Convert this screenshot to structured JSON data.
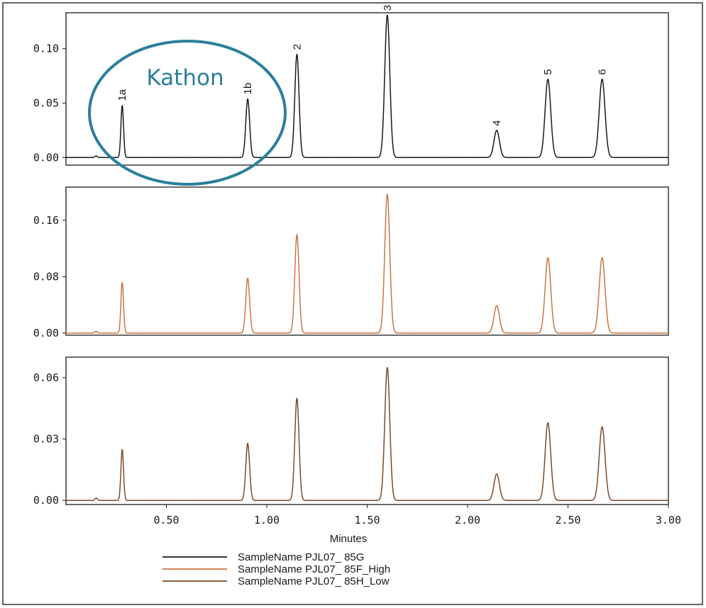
{
  "chart_data": {
    "type": "line",
    "xlabel": "Minutes",
    "xlim": [
      0,
      3.0
    ],
    "x_ticks": [
      "0.50",
      "1.00",
      "1.50",
      "2.00",
      "2.50",
      "3.00"
    ],
    "x_tick_values": [
      0.5,
      1.0,
      1.5,
      2.0,
      2.5,
      3.0
    ],
    "panels": [
      {
        "series_name": "SampleName PJL07_ 85G",
        "color": "#1a1a1a",
        "ylim": [
          -0.007,
          0.133
        ],
        "y_ticks": [
          "0.00",
          "0.05",
          "0.10"
        ],
        "y_tick_values": [
          0.0,
          0.05,
          0.1
        ],
        "baseline_bumps": [
          {
            "t": 0.15,
            "h": 0.0015,
            "w": 0.006
          }
        ],
        "peaks": [
          {
            "label": "1a",
            "t": 0.28,
            "h": 0.048,
            "w": 0.0065
          },
          {
            "label": "1b",
            "t": 0.905,
            "h": 0.054,
            "w": 0.0095
          },
          {
            "label": "2",
            "t": 1.15,
            "h": 0.095,
            "w": 0.0105
          },
          {
            "label": "3",
            "t": 1.6,
            "h": 0.131,
            "w": 0.0125
          },
          {
            "label": "4",
            "t": 2.145,
            "h": 0.025,
            "w": 0.0135
          },
          {
            "label": "5",
            "t": 2.4,
            "h": 0.072,
            "w": 0.014
          },
          {
            "label": "6",
            "t": 2.67,
            "h": 0.072,
            "w": 0.0145
          }
        ]
      },
      {
        "series_name": "SampleName PJL07_ 85F_High",
        "color": "#c8763f",
        "ylim": [
          -0.003,
          0.207
        ],
        "y_ticks": [
          "0.00",
          "0.08",
          "0.16"
        ],
        "y_tick_values": [
          0.0,
          0.08,
          0.16
        ],
        "baseline_bumps": [
          {
            "t": 0.15,
            "h": 0.0025,
            "w": 0.006
          }
        ],
        "peaks": [
          {
            "t": 0.28,
            "h": 0.072,
            "w": 0.0065
          },
          {
            "t": 0.905,
            "h": 0.078,
            "w": 0.0095
          },
          {
            "t": 1.15,
            "h": 0.14,
            "w": 0.0105
          },
          {
            "t": 1.6,
            "h": 0.197,
            "w": 0.0125
          },
          {
            "t": 2.145,
            "h": 0.039,
            "w": 0.0135
          },
          {
            "t": 2.4,
            "h": 0.107,
            "w": 0.014
          },
          {
            "t": 2.67,
            "h": 0.107,
            "w": 0.0145
          }
        ]
      },
      {
        "series_name": "SampleName PJL07_ 85H_Low",
        "color": "#7a4a2a",
        "ylim": [
          -0.002,
          0.07
        ],
        "y_ticks": [
          "0.00",
          "0.03",
          "0.06"
        ],
        "y_tick_values": [
          0.0,
          0.03,
          0.06
        ],
        "baseline_bumps": [
          {
            "t": 0.15,
            "h": 0.0012,
            "w": 0.006
          }
        ],
        "peaks": [
          {
            "t": 0.28,
            "h": 0.025,
            "w": 0.0065
          },
          {
            "t": 0.905,
            "h": 0.028,
            "w": 0.0095
          },
          {
            "t": 1.15,
            "h": 0.05,
            "w": 0.0105
          },
          {
            "t": 1.6,
            "h": 0.065,
            "w": 0.0125
          },
          {
            "t": 2.145,
            "h": 0.013,
            "w": 0.0135
          },
          {
            "t": 2.4,
            "h": 0.038,
            "w": 0.014
          },
          {
            "t": 2.67,
            "h": 0.036,
            "w": 0.0145
          }
        ]
      }
    ],
    "annotation": {
      "text": "Kathon",
      "color": "#2b7f9b"
    },
    "legend": {
      "position": "bottom-left",
      "entries": [
        {
          "name": "SampleName PJL07_ 85G",
          "color": "#1a1a1a"
        },
        {
          "name": "SampleName PJL07_ 85F_High",
          "color": "#c8763f"
        },
        {
          "name": "SampleName PJL07_ 85H_Low",
          "color": "#7a4a2a"
        }
      ]
    }
  }
}
